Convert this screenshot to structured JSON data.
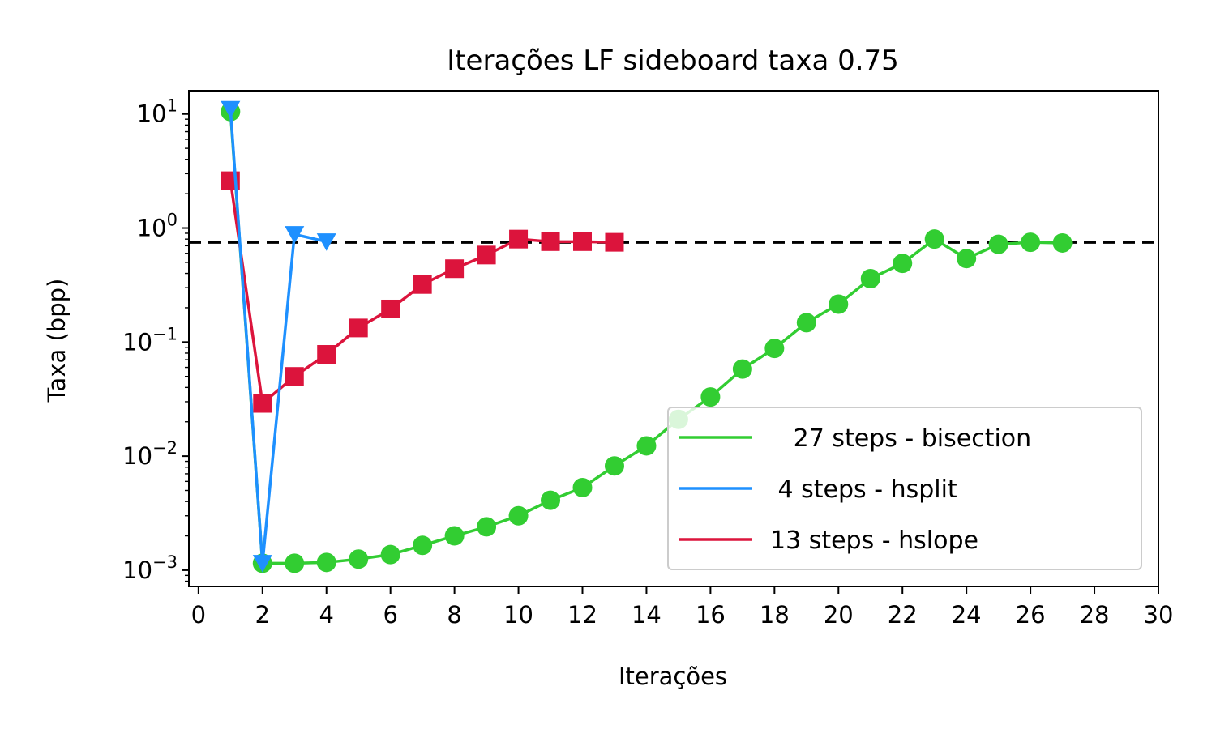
{
  "chart_data": {
    "type": "line",
    "title": "Iterações LF sideboard taxa 0.75",
    "xlabel": "Iterações",
    "ylabel": "Taxa (bpp)",
    "yscale": "log",
    "xlim": [
      -0.3,
      30
    ],
    "ylim": [
      0.00072,
      16
    ],
    "xticks": [
      0,
      2,
      4,
      6,
      8,
      10,
      12,
      14,
      16,
      18,
      20,
      22,
      24,
      26,
      28,
      30
    ],
    "yticks": [
      {
        "value": 0.001,
        "base": "10",
        "exp": "−3"
      },
      {
        "value": 0.01,
        "base": "10",
        "exp": "−2"
      },
      {
        "value": 0.1,
        "base": "10",
        "exp": "−1"
      },
      {
        "value": 1,
        "base": "10",
        "exp": "0"
      },
      {
        "value": 10,
        "base": "10",
        "exp": "1"
      }
    ],
    "grid": false,
    "legend_position": "lower-right",
    "target_line": {
      "value": 0.75,
      "color": "#000000",
      "style": "dashed"
    },
    "series": [
      {
        "name": "   27 steps - bisection",
        "color": "#32cd32",
        "marker": "circle",
        "x": [
          1,
          2,
          3,
          4,
          5,
          6,
          7,
          8,
          9,
          10,
          11,
          12,
          13,
          14,
          15,
          16,
          17,
          18,
          19,
          20,
          21,
          22,
          23,
          24,
          25,
          26,
          27
        ],
        "y": [
          10.5,
          0.00115,
          0.00115,
          0.00117,
          0.00125,
          0.00137,
          0.00165,
          0.002,
          0.0024,
          0.003,
          0.0041,
          0.0053,
          0.0082,
          0.0123,
          0.021,
          0.033,
          0.058,
          0.088,
          0.148,
          0.215,
          0.36,
          0.49,
          0.8,
          0.54,
          0.72,
          0.75,
          0.74
        ]
      },
      {
        "name": " 4 steps - hsplit",
        "color": "#1e90ff",
        "marker": "triangle-down",
        "x": [
          1,
          2,
          3,
          4
        ],
        "y": [
          11,
          0.00115,
          0.88,
          0.76
        ]
      },
      {
        "name": "13 steps - hslope",
        "color": "#dc143c",
        "marker": "square",
        "x": [
          1,
          2,
          3,
          4,
          5,
          6,
          7,
          8,
          9,
          10,
          11,
          12,
          13
        ],
        "y": [
          2.6,
          0.029,
          0.05,
          0.078,
          0.133,
          0.195,
          0.32,
          0.44,
          0.58,
          0.8,
          0.76,
          0.76,
          0.75
        ]
      }
    ]
  }
}
